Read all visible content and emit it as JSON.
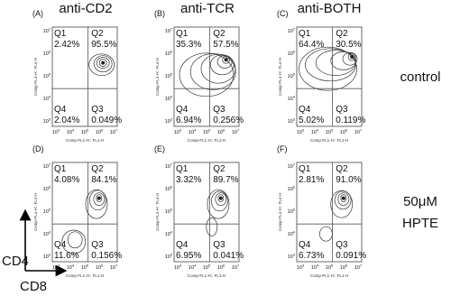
{
  "column_titles": [
    "anti-CD2",
    "anti-TCR",
    "anti-BOTH"
  ],
  "row_labels": [
    [
      "control"
    ],
    [
      "50μM",
      "HPTE"
    ]
  ],
  "x_axis_label": "Comp-FL1-H:: FL1-H",
  "y_axis_label": "Comp-FL4-H:: FL4-H",
  "tick_base": "10",
  "tick_exponents": [
    "3",
    "4",
    "5",
    "6",
    "7"
  ],
  "panels": [
    {
      "letter": "(A)",
      "quadrants": [
        {
          "name": "Q1",
          "percent": "2.42%"
        },
        {
          "name": "Q2",
          "percent": "95.5%"
        },
        {
          "name": "Q4",
          "percent": "2.04%"
        },
        {
          "name": "Q3",
          "percent": "0.049%"
        }
      ]
    },
    {
      "letter": "(B)",
      "quadrants": [
        {
          "name": "Q1",
          "percent": "35.3%"
        },
        {
          "name": "Q2",
          "percent": "57.5%"
        },
        {
          "name": "Q4",
          "percent": "6.94%"
        },
        {
          "name": "Q3",
          "percent": "0.256%"
        }
      ]
    },
    {
      "letter": "(C)",
      "quadrants": [
        {
          "name": "Q1",
          "percent": "64.4%"
        },
        {
          "name": "Q2",
          "percent": "30.5%"
        },
        {
          "name": "Q4",
          "percent": "5.02%"
        },
        {
          "name": "Q3",
          "percent": "0.119%"
        }
      ]
    },
    {
      "letter": "(D)",
      "quadrants": [
        {
          "name": "Q1",
          "percent": "4.08%"
        },
        {
          "name": "Q2",
          "percent": "84.1%"
        },
        {
          "name": "Q4",
          "percent": "11.6%"
        },
        {
          "name": "Q3",
          "percent": "0.156%"
        }
      ]
    },
    {
      "letter": "(E)",
      "quadrants": [
        {
          "name": "Q1",
          "percent": "3.32%"
        },
        {
          "name": "Q2",
          "percent": "89.7%"
        },
        {
          "name": "Q4",
          "percent": "6.95%"
        },
        {
          "name": "Q3",
          "percent": "0.041%"
        }
      ]
    },
    {
      "letter": "(F)",
      "quadrants": [
        {
          "name": "Q1",
          "percent": "2.81%"
        },
        {
          "name": "Q2",
          "percent": "91.0%"
        },
        {
          "name": "Q4",
          "percent": "6.73%"
        },
        {
          "name": "Q3",
          "percent": "0.091%"
        }
      ]
    }
  ],
  "corner_axes": {
    "y": "CD4",
    "x": "CD8"
  }
}
